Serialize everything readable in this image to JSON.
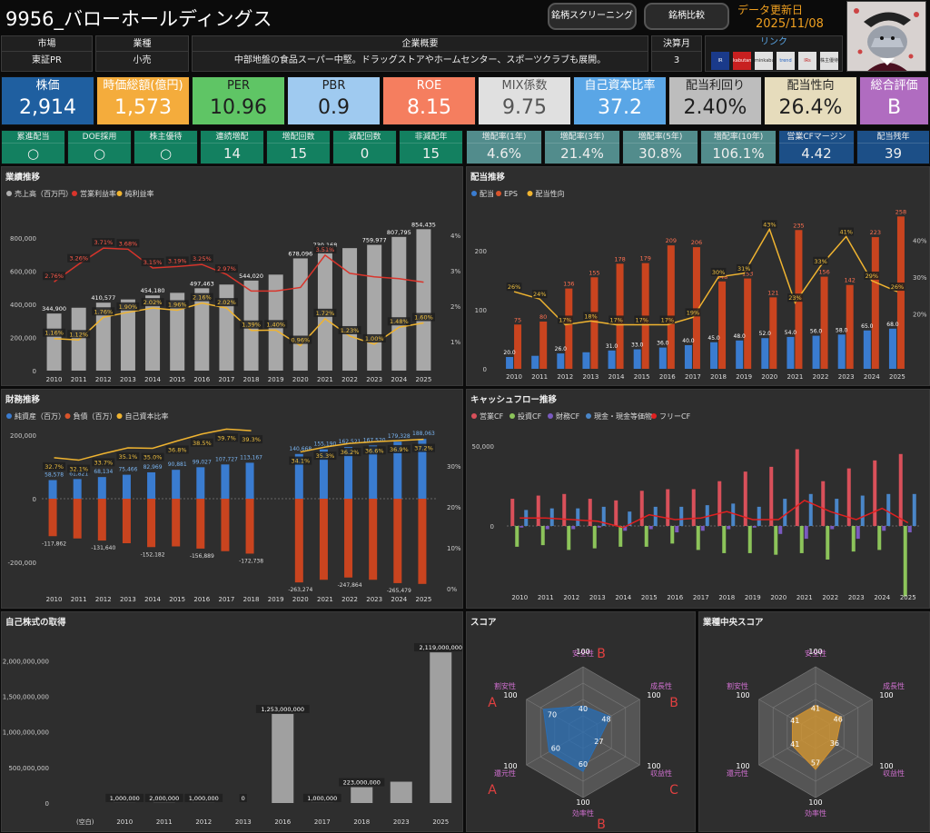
{
  "header": {
    "title": "9956_バローホールディングス",
    "btn_screening": "銘柄スクリーニング",
    "btn_compare": "銘柄比較",
    "updated_label": "データ更新日",
    "updated_date": "2025/11/08"
  },
  "info": {
    "market_h": "市場",
    "market": "東証PR",
    "industry_h": "業種",
    "industry": "小売",
    "overview_h": "企業概要",
    "overview": "中部地盤の食品スーパー中堅。ドラッグストアやホームセンター、スポーツクラブも展開。",
    "month_h": "決算月",
    "month": "3",
    "links_h": "リンク",
    "link_labels": [
      "IR BANK",
      "kabutan",
      "minkabu",
      "trend",
      "IRs",
      "株主優待"
    ]
  },
  "cards": [
    {
      "label": "株価",
      "value": "2,914",
      "bg": "#1f5fa0",
      "fg": "#ffffff"
    },
    {
      "label": "時価総額(億円)",
      "value": "1,573",
      "bg": "#f4ac3c",
      "fg": "#ffffff"
    },
    {
      "label": "PER",
      "value": "10.96",
      "bg": "#5fc565",
      "fg": "#1f1f1f"
    },
    {
      "label": "PBR",
      "value": "0.9",
      "bg": "#9fcaf0",
      "fg": "#1f1f1f"
    },
    {
      "label": "ROE",
      "value": "8.15",
      "bg": "#f57e5f",
      "fg": "#ffffff"
    },
    {
      "label": "MIX係数",
      "value": "9.75",
      "bg": "#e0e0e0",
      "fg": "#555555"
    },
    {
      "label": "自己資本比率",
      "value": "37.2",
      "bg": "#5aa6e6",
      "fg": "#ffffff"
    },
    {
      "label": "配当利回り",
      "value": "2.40%",
      "bg": "#bdbdbd",
      "fg": "#1f1f1f"
    },
    {
      "label": "配当性向",
      "value": "26.4%",
      "bg": "#e6dcbc",
      "fg": "#1f1f1f"
    },
    {
      "label": "総合評価",
      "value": "B",
      "bg": "#b06cc0",
      "fg": "#ffffff"
    }
  ],
  "metrics": [
    {
      "label": "累進配当",
      "value": "○",
      "bg": "#138060"
    },
    {
      "label": "DOE採用",
      "value": "○",
      "bg": "#138060"
    },
    {
      "label": "株主優待",
      "value": "○",
      "bg": "#138060"
    },
    {
      "label": "連続増配",
      "value": "14",
      "bg": "#138060"
    },
    {
      "label": "増配回数",
      "value": "15",
      "bg": "#138060"
    },
    {
      "label": "減配回数",
      "value": "0",
      "bg": "#138060"
    },
    {
      "label": "非減配年",
      "value": "15",
      "bg": "#138060"
    },
    {
      "label": "増配率(1年)",
      "value": "4.6%",
      "bg": "#528c8c"
    },
    {
      "label": "増配率(3年)",
      "value": "21.4%",
      "bg": "#528c8c"
    },
    {
      "label": "増配率(5年)",
      "value": "30.8%",
      "bg": "#528c8c"
    },
    {
      "label": "増配率(10年)",
      "value": "106.1%",
      "bg": "#528c8c"
    },
    {
      "label": "営業CFマージン",
      "value": "4.42",
      "bg": "#1c4f87"
    },
    {
      "label": "配当残年",
      "value": "39",
      "bg": "#1c4f87"
    }
  ],
  "panels": {
    "perf": "業績推移",
    "div": "配当推移",
    "fin": "財務推移",
    "cf": "キャッシュフロー推移",
    "buy": "自己株式の取得",
    "score": "スコア",
    "industry_score": "業種中央スコア"
  },
  "chart_data": [
    {
      "type": "bar",
      "id": "perf",
      "title": "業績推移",
      "legend": [
        "売上高（百万円）",
        "営業利益率",
        "純利益率"
      ],
      "categories": [
        "2010",
        "2011",
        "2012",
        "2013",
        "2014",
        "2015",
        "2016",
        "2017",
        "2018",
        "2019",
        "2020",
        "2021",
        "2022",
        "2023",
        "2024",
        "2025"
      ],
      "bar_labels": [
        "344,900",
        "",
        "410,577",
        "",
        "454,180",
        "",
        "497,463",
        "",
        "544,020",
        "",
        "678,096",
        "730,168",
        "",
        "759,977",
        "807,795",
        "854,435"
      ],
      "series": [
        {
          "name": "売上高（百万円）",
          "values": [
            344900,
            380000,
            410577,
            430000,
            454180,
            470000,
            497463,
            520000,
            544020,
            580000,
            678096,
            730168,
            740000,
            759977,
            807795,
            854435
          ]
        },
        {
          "name": "営業利益率",
          "values": [
            2.76,
            3.26,
            3.71,
            3.68,
            3.15,
            3.19,
            3.25,
            2.97,
            2.5,
            2.5,
            2.6,
            3.51,
            3.0,
            2.9,
            2.85,
            2.75
          ],
          "labels": [
            "2.76%",
            "3.26%",
            "3.71%",
            "3.68%",
            "3.15%",
            "3.19%",
            "3.25%",
            "2.97%",
            "",
            "",
            "",
            "3.51%",
            "",
            "",
            "",
            ""
          ]
        },
        {
          "name": "純利益率",
          "values": [
            1.16,
            1.12,
            1.76,
            1.9,
            2.02,
            1.96,
            2.16,
            2.02,
            1.39,
            1.4,
            0.96,
            1.72,
            1.23,
            1.0,
            1.48,
            1.6
          ],
          "labels": [
            "1.16%",
            "1.12%",
            "1.76%",
            "1.90%",
            "2.02%",
            "1.96%",
            "2.16%",
            "2.02%",
            "1.39%",
            "1.40%",
            "0.96%",
            "1.72%",
            "1.23%",
            "1.00%",
            "1.48%",
            "1.60%"
          ]
        }
      ],
      "yticks": [
        "0",
        "200,000",
        "400,000",
        "600,000",
        "800,000"
      ],
      "y2ticks": [
        "1%",
        "2%",
        "3%",
        "4%"
      ]
    },
    {
      "type": "bar",
      "id": "div",
      "title": "配当推移",
      "legend": [
        "配当",
        "EPS",
        "配当性向"
      ],
      "categories": [
        "2010",
        "2011",
        "2012",
        "2013",
        "2014",
        "2015",
        "2016",
        "2017",
        "2018",
        "2019",
        "2020",
        "2021",
        "2022",
        "2023",
        "2024",
        "2025"
      ],
      "series": [
        {
          "name": "配当",
          "values": [
            20.0,
            22.0,
            26.0,
            28.0,
            31.0,
            33.0,
            36.0,
            40.0,
            45.0,
            48.0,
            52.0,
            54.0,
            56.0,
            58.0,
            65.0,
            68.0
          ]
        },
        {
          "name": "EPS",
          "values": [
            75,
            80,
            136,
            155,
            178,
            179,
            209,
            206,
            148,
            153,
            121,
            235,
            156,
            142,
            223,
            258
          ],
          "labels": [
            "75",
            "80",
            "136",
            "155",
            "178",
            "179",
            "209",
            "206",
            "148",
            "153",
            "121",
            "235",
            "156",
            "142",
            "223",
            "258"
          ]
        },
        {
          "name": "配当性向",
          "values": [
            26,
            24,
            17,
            18,
            17,
            17,
            17,
            19,
            30,
            31,
            43,
            23,
            33,
            41,
            29,
            26
          ],
          "labels": [
            "26%",
            "24%",
            "17%",
            "18%",
            "17%",
            "17%",
            "17%",
            "19%",
            "30%",
            "31%",
            "43%",
            "23%",
            "33%",
            "41%",
            "29%",
            "26%"
          ]
        }
      ],
      "bar_labels": [
        "20.0",
        "",
        "26.0",
        "",
        "31.0",
        "33.0",
        "36.0",
        "40.0",
        "45.0",
        "48.0",
        "52.0",
        "54.0",
        "56.0",
        "58.0",
        "65.0",
        "68.0"
      ],
      "yticks": [
        "0",
        "100",
        "200"
      ],
      "y2ticks": [
        "20%",
        "30%",
        "40%"
      ]
    },
    {
      "type": "bar",
      "id": "fin",
      "title": "財務推移",
      "legend": [
        "純資産（百万）",
        "負債（百万）",
        "自己資本比率"
      ],
      "categories": [
        "2010",
        "2011",
        "2012",
        "2013",
        "2014",
        "2015",
        "2016",
        "2017",
        "2018",
        "2019",
        "2020",
        "2021",
        "2022",
        "2023",
        "2024",
        "2025"
      ],
      "series": [
        {
          "name": "純資産（百万）",
          "values": [
            58578,
            61821,
            68134,
            75466,
            82969,
            90881,
            99027,
            107727,
            113167,
            null,
            140668,
            155190,
            162521,
            167520,
            179328,
            188063
          ]
        },
        {
          "name": "負債（百万）",
          "values": [
            -117862,
            -125000,
            -131640,
            -140000,
            -152182,
            -150000,
            -156889,
            -165000,
            -172738,
            null,
            -263274,
            -255000,
            -247864,
            -255000,
            -265479,
            -268000
          ]
        },
        {
          "name": "自己資本比率",
          "values": [
            32.7,
            32.1,
            33.7,
            35.1,
            35.0,
            36.8,
            38.5,
            39.7,
            39.3,
            null,
            34.1,
            35.3,
            36.2,
            36.6,
            36.9,
            37.2
          ],
          "labels": [
            "32.7%",
            "32.1%",
            "33.7%",
            "35.1%",
            "35.0%",
            "36.8%",
            "38.5%",
            "39.7%",
            "39.3%",
            "",
            "34.1%",
            "35.3%",
            "36.2%",
            "36.6%",
            "36.9%",
            "37.2%"
          ]
        }
      ],
      "pos_labels": [
        "58,578",
        "61,821",
        "68,134",
        "75,466",
        "82,969",
        "90,881",
        "99,027",
        "107,727",
        "113,167",
        "",
        "140,668",
        "155,190",
        "162,521",
        "167,520",
        "179,328",
        "188,063"
      ],
      "neg_labels": [
        "-117,862",
        "",
        "-131,640",
        "",
        "-152,182",
        "",
        "-156,889",
        "",
        "-172,738",
        "",
        "-263,274",
        "",
        "-247,864",
        "",
        "-265,479",
        ""
      ],
      "yticks": [
        "-200,000",
        "0",
        "200,000"
      ],
      "y2ticks": [
        "0%",
        "10%",
        "20%",
        "30%"
      ]
    },
    {
      "type": "bar",
      "id": "cf",
      "title": "キャッシュフロー推移",
      "legend": [
        "営業CF",
        "投資CF",
        "財務CF",
        "現金・現金等価物",
        "フリーCF"
      ],
      "categories": [
        "2010",
        "2011",
        "2012",
        "2013",
        "2014",
        "2015",
        "2016",
        "2017",
        "2018",
        "2019",
        "2020",
        "2021",
        "2022",
        "2023",
        "2024",
        "2025"
      ],
      "series": [
        {
          "name": "営業CF",
          "values": [
            17,
            19,
            20,
            17,
            16,
            22,
            23,
            23,
            28,
            34,
            37,
            48,
            28,
            36,
            41,
            45
          ]
        },
        {
          "name": "投資CF",
          "values": [
            -13,
            -12,
            -15,
            -14,
            -13,
            -13,
            -11,
            -15,
            -17,
            -17,
            -18,
            -17,
            -21,
            -16,
            -15,
            -44
          ]
        },
        {
          "name": "財務CF",
          "values": [
            -1,
            -2,
            -2,
            -1,
            -3,
            -2,
            -4,
            -3,
            -2,
            -1,
            -5,
            -8,
            -2,
            -8,
            -3,
            -4
          ]
        },
        {
          "name": "現金・現金等価物",
          "values": [
            10,
            11,
            11,
            12,
            9,
            12,
            12,
            13,
            14,
            12,
            17,
            20,
            17,
            19,
            20,
            20
          ]
        },
        {
          "name": "フリーCF",
          "values": [
            5,
            5,
            4,
            3,
            -1,
            7,
            4,
            5,
            9,
            4,
            4,
            16,
            9,
            4,
            11,
            2
          ]
        }
      ],
      "yticks": [
        "0",
        "50,000"
      ]
    },
    {
      "type": "bar",
      "id": "buy",
      "title": "自己株式の取得",
      "categories": [
        "(空白)",
        "2010",
        "2011",
        "2012",
        "2013",
        "2016",
        "2017",
        "2018",
        "2023",
        "2025"
      ],
      "values": [
        0,
        1000000,
        2000000,
        1000000,
        0,
        1253000000,
        1000000,
        223000000,
        300000000,
        2119000000
      ],
      "labels": [
        "",
        "1,000,000",
        "2,000,000",
        "1,000,000",
        "0",
        "1,253,000,000",
        "1,000,000",
        "223,000,000",
        "",
        "2,119,000,000"
      ],
      "yticks": [
        "0",
        "500,000,000",
        "1,000,000,000",
        "1,500,000,000",
        "2,000,000,000"
      ]
    },
    {
      "type": "radar",
      "id": "score",
      "title": "スコア",
      "axes": [
        "安全性",
        "成長性",
        "収益性",
        "効率性",
        "還元性",
        "割安性"
      ],
      "values": [
        40,
        48,
        27,
        60,
        60,
        70
      ],
      "max": 100,
      "grades": [
        "B",
        "B",
        "C",
        "B",
        "A",
        "A"
      ],
      "ring_labels": [
        "100",
        "100",
        "100",
        "100",
        "100",
        "100"
      ]
    },
    {
      "type": "radar",
      "id": "industry",
      "title": "業種中央スコア",
      "axes": [
        "安全性",
        "成長性",
        "収益性",
        "効率性",
        "還元性",
        "割安性"
      ],
      "values": [
        41,
        46,
        36,
        57,
        41,
        41
      ],
      "max": 100,
      "ring_labels": [
        "100",
        "100",
        "100",
        "100",
        "100",
        "100"
      ]
    }
  ]
}
